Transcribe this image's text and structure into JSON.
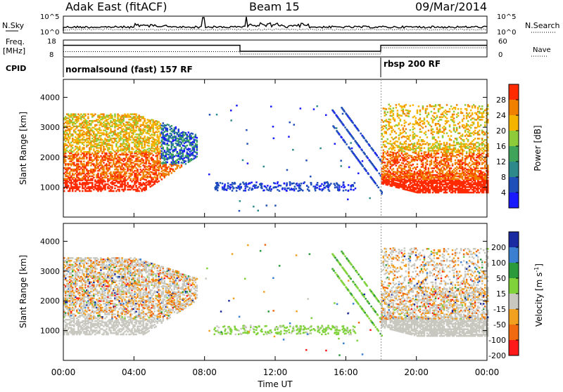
{
  "header": {
    "station": "Adak East (fitACF)",
    "beam": "Beam 15",
    "date": "09/Mar/2014"
  },
  "noise_panel": {
    "left_label": "N.Sky",
    "right_label": "N.Search",
    "left_ticks": [
      "10^5",
      "10^0"
    ],
    "right_ticks": [
      "10^5",
      "10^0"
    ]
  },
  "freq_panel": {
    "left_label_line1": "Freq.",
    "left_label_line2": "[MHz]",
    "right_label": "Nave",
    "left_ticks": [
      "18",
      "8"
    ],
    "right_ticks": [
      "60",
      "0"
    ]
  },
  "cpid_panel": {
    "label": "CPID",
    "programs": [
      "normalsound (fast) 157 RF",
      "rbsp 200 RF"
    ]
  },
  "chart_data": [
    {
      "type": "heatmap",
      "quantity": "Power",
      "ylabel": "Slant Range [km]",
      "xlabel": "Time UT",
      "ylim": [
        0,
        4600
      ],
      "y_ticks": [
        1000,
        2000,
        3000,
        4000
      ],
      "x_ticks": [
        "00:00",
        "04:00",
        "08:00",
        "12:00",
        "16:00",
        "20:00",
        "00:00"
      ],
      "xlim_hours": [
        0,
        24
      ],
      "colorbar_label": "Power [dB]",
      "colorbar_ticks": [
        4,
        8,
        12,
        16,
        20,
        24,
        28
      ],
      "colorbar_range": [
        0,
        32
      ],
      "colors": [
        "#1a1aff",
        "#1f4fb8",
        "#2e8a8a",
        "#3fa45a",
        "#8ecb3a",
        "#f5b400",
        "#f08000",
        "#ff2a00"
      ]
    },
    {
      "type": "heatmap",
      "quantity": "Velocity",
      "ylabel": "Slant Range [km]",
      "xlabel": "Time UT",
      "ylim": [
        0,
        4600
      ],
      "y_ticks": [
        1000,
        2000,
        3000,
        4000
      ],
      "x_ticks": [
        "00:00",
        "04:00",
        "08:00",
        "12:00",
        "16:00",
        "20:00",
        "00:00"
      ],
      "xlim_hours": [
        0,
        24
      ],
      "colorbar_label": "Velocity [m s^-1]",
      "colorbar_ticks": [
        "200",
        "100",
        "50",
        "15",
        "-15",
        "-50",
        "-100",
        "-200"
      ],
      "colors": [
        "#1a2aa0",
        "#3a7fd0",
        "#2a9a3a",
        "#7fd23a",
        "#c8c8c0",
        "#f2a020",
        "#f26a10",
        "#ff1a1a"
      ]
    }
  ],
  "time_axis": {
    "label": "Time UT",
    "ticks": [
      "00:00",
      "04:00",
      "08:00",
      "12:00",
      "16:00",
      "20:00",
      "00:00"
    ]
  }
}
